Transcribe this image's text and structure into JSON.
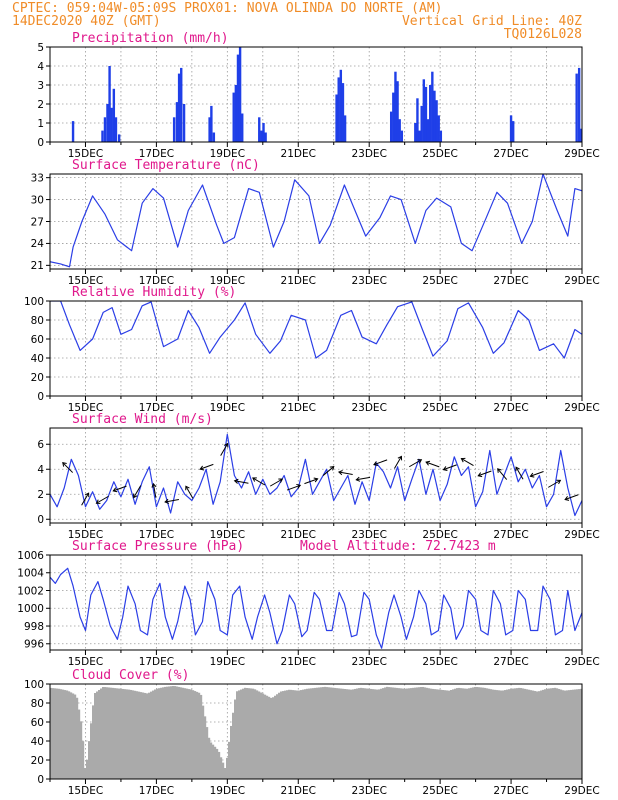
{
  "header": {
    "line1": "CPTEC:   059:04W-05:09S   PROX01: NOVA OLINDA DO NORTE (AM)",
    "line2_left": "14DEC2020 40Z (GMT)",
    "line2_right": "Vertical Grid Line: 40Z",
    "line3_right": "TQ0126L028"
  },
  "x_axis": {
    "labels": [
      "15DEC",
      "17DEC",
      "19DEC",
      "21DEC",
      "23DEC",
      "25DEC",
      "27DEC",
      "29DEC"
    ],
    "label_days": [
      1,
      3,
      5,
      7,
      9,
      11,
      13,
      15
    ],
    "range_days": [
      0,
      15
    ]
  },
  "colors": {
    "series": "#2b3ee6",
    "bars": "#1f3fe8",
    "cloud": "#aaaaaa",
    "grid": "#9a9a9a",
    "title": "#e0188c",
    "header": "#f08c28"
  },
  "chart_data": [
    {
      "id": "precip",
      "type": "bar",
      "title": "Precipitation (mm/h)",
      "ylim": [
        0,
        5
      ],
      "yticks": [
        0,
        1,
        2,
        3,
        4,
        5
      ],
      "grid": true,
      "x": [
        0.65,
        1.48,
        1.55,
        1.62,
        1.68,
        1.74,
        1.8,
        1.86,
        1.95,
        3.5,
        3.58,
        3.64,
        3.7,
        3.78,
        4.5,
        4.55,
        4.62,
        5.18,
        5.24,
        5.3,
        5.36,
        5.42,
        5.9,
        5.96,
        6.02,
        6.08,
        8.08,
        8.14,
        8.2,
        8.26,
        8.32,
        9.62,
        9.68,
        9.74,
        9.8,
        9.86,
        9.92,
        10.3,
        10.36,
        10.42,
        10.48,
        10.54,
        10.6,
        10.66,
        10.72,
        10.78,
        10.84,
        10.9,
        10.96,
        11.02,
        13.0,
        13.06,
        14.85,
        14.92,
        14.98
      ],
      "values": [
        1.1,
        0.6,
        1.3,
        2.0,
        4.0,
        1.8,
        2.8,
        1.3,
        0.4,
        1.3,
        2.1,
        3.6,
        3.9,
        2.0,
        1.3,
        1.9,
        0.5,
        2.6,
        3.0,
        4.6,
        5.0,
        1.5,
        1.3,
        0.6,
        1.0,
        0.5,
        2.5,
        3.4,
        3.8,
        3.1,
        1.4,
        1.6,
        2.6,
        3.7,
        3.2,
        1.2,
        0.6,
        1.0,
        2.3,
        0.6,
        1.9,
        3.3,
        2.9,
        1.2,
        3.0,
        3.7,
        2.7,
        2.2,
        1.4,
        0.6,
        1.4,
        1.1,
        3.6,
        3.9,
        0.7
      ]
    },
    {
      "id": "temp",
      "type": "line",
      "title": "Surface Temperature (nC)",
      "ylim": [
        20.5,
        33.5
      ],
      "yticks": [
        21,
        24,
        27,
        30,
        33
      ],
      "grid": true,
      "x": [
        0,
        0.3,
        0.55,
        0.65,
        0.9,
        1.2,
        1.55,
        1.9,
        2.3,
        2.6,
        2.9,
        3.2,
        3.6,
        3.9,
        4.3,
        4.7,
        4.9,
        5.2,
        5.6,
        5.9,
        6.3,
        6.6,
        6.9,
        7.3,
        7.6,
        7.9,
        8.3,
        8.6,
        8.9,
        9.3,
        9.6,
        9.9,
        10.3,
        10.6,
        10.9,
        11.3,
        11.6,
        11.9,
        12.3,
        12.6,
        12.9,
        13.3,
        13.6,
        13.9,
        14.3,
        14.6,
        14.8,
        15
      ],
      "values": [
        21.5,
        21.2,
        20.8,
        23.5,
        27.0,
        30.5,
        28.0,
        24.5,
        23.0,
        29.5,
        31.5,
        30.2,
        23.5,
        28.5,
        32.0,
        26.5,
        24.0,
        24.8,
        31.5,
        31.0,
        23.5,
        27.0,
        32.7,
        30.5,
        24.0,
        26.5,
        32.0,
        28.5,
        25.0,
        27.5,
        30.5,
        30.0,
        24.0,
        28.5,
        30.2,
        29.0,
        24.0,
        23.0,
        27.5,
        31.0,
        29.5,
        24.0,
        27.0,
        33.5,
        28.5,
        25.0,
        31.5,
        31.2
      ]
    },
    {
      "id": "rh",
      "type": "line",
      "title": "Relative Humidity (%)",
      "ylim": [
        0,
        100
      ],
      "yticks": [
        0,
        20,
        40,
        60,
        80,
        100
      ],
      "grid": true,
      "x": [
        0,
        0.3,
        0.55,
        0.85,
        1.2,
        1.5,
        1.75,
        2.0,
        2.3,
        2.6,
        2.85,
        3.2,
        3.6,
        3.9,
        4.2,
        4.5,
        4.8,
        5.2,
        5.5,
        5.8,
        6.2,
        6.5,
        6.8,
        7.2,
        7.5,
        7.8,
        8.2,
        8.5,
        8.8,
        9.2,
        9.5,
        9.8,
        10.2,
        10.5,
        10.8,
        11.2,
        11.5,
        11.8,
        12.2,
        12.5,
        12.8,
        13.2,
        13.5,
        13.8,
        14.2,
        14.5,
        14.8,
        15
      ],
      "values": [
        100,
        100,
        75,
        48,
        60,
        88,
        93,
        65,
        70,
        95,
        99,
        52,
        60,
        90,
        72,
        45,
        62,
        80,
        98,
        65,
        45,
        58,
        85,
        80,
        40,
        48,
        85,
        90,
        62,
        55,
        75,
        94,
        99,
        70,
        42,
        58,
        92,
        98,
        72,
        45,
        56,
        90,
        80,
        48,
        55,
        40,
        70,
        65
      ]
    },
    {
      "id": "wind",
      "type": "line",
      "title": "Surface Wind (m/s)",
      "ylim": [
        -0.3,
        7.3
      ],
      "yticks": [
        0,
        2,
        4,
        6
      ],
      "grid": true,
      "x": [
        0,
        0.2,
        0.4,
        0.6,
        0.8,
        1.0,
        1.2,
        1.4,
        1.6,
        1.8,
        2.0,
        2.2,
        2.4,
        2.6,
        2.8,
        3.0,
        3.2,
        3.4,
        3.6,
        3.8,
        4.0,
        4.2,
        4.4,
        4.6,
        4.8,
        5.0,
        5.2,
        5.4,
        5.6,
        5.8,
        6.0,
        6.2,
        6.4,
        6.6,
        6.8,
        7.0,
        7.2,
        7.4,
        7.6,
        7.8,
        8.0,
        8.2,
        8.4,
        8.6,
        8.8,
        9.0,
        9.2,
        9.4,
        9.6,
        9.8,
        10.0,
        10.2,
        10.4,
        10.6,
        10.8,
        11.0,
        11.2,
        11.4,
        11.6,
        11.8,
        12.0,
        12.2,
        12.4,
        12.6,
        12.8,
        13.0,
        13.2,
        13.4,
        13.6,
        13.8,
        14.0,
        14.2,
        14.4,
        14.6,
        14.8,
        15.0
      ],
      "values": [
        2.0,
        1.0,
        2.5,
        4.8,
        3.5,
        1.0,
        2.2,
        0.8,
        1.5,
        3.0,
        1.8,
        3.2,
        1.2,
        3.0,
        4.2,
        1.0,
        2.5,
        0.5,
        3.0,
        2.0,
        1.5,
        2.5,
        4.0,
        1.2,
        3.0,
        6.8,
        3.5,
        2.5,
        3.8,
        2.0,
        3.2,
        2.0,
        2.5,
        3.5,
        1.8,
        2.5,
        4.8,
        2.0,
        3.0,
        4.0,
        1.5,
        2.5,
        3.5,
        1.2,
        3.0,
        1.5,
        4.5,
        3.8,
        2.5,
        4.2,
        1.5,
        3.2,
        4.8,
        2.0,
        4.0,
        1.5,
        2.8,
        5.0,
        3.5,
        4.2,
        1.0,
        2.2,
        5.5,
        2.0,
        3.5,
        5.0,
        3.0,
        4.0,
        2.5,
        3.5,
        1.0,
        2.0,
        5.5,
        2.5,
        0.3,
        1.5
      ]
    },
    {
      "id": "press",
      "type": "line",
      "title": "Surface Pressure (hPa)",
      "annotation": "Model Altitude: 72.7423 m",
      "ylim": [
        995.3,
        1006
      ],
      "yticks": [
        996,
        998,
        1000,
        1002,
        1004,
        1006
      ],
      "grid": true,
      "x": [
        0,
        0.15,
        0.3,
        0.5,
        0.65,
        0.85,
        1.0,
        1.15,
        1.35,
        1.5,
        1.7,
        1.9,
        2.05,
        2.2,
        2.4,
        2.55,
        2.75,
        2.9,
        3.1,
        3.25,
        3.45,
        3.6,
        3.8,
        3.95,
        4.1,
        4.3,
        4.45,
        4.65,
        4.8,
        5.0,
        5.15,
        5.35,
        5.5,
        5.7,
        5.85,
        6.05,
        6.2,
        6.4,
        6.55,
        6.75,
        6.9,
        7.1,
        7.25,
        7.45,
        7.6,
        7.8,
        7.95,
        8.15,
        8.3,
        8.5,
        8.65,
        8.85,
        9.0,
        9.2,
        9.35,
        9.55,
        9.7,
        9.9,
        10.05,
        10.25,
        10.4,
        10.6,
        10.75,
        10.95,
        11.1,
        11.3,
        11.45,
        11.65,
        11.8,
        12.0,
        12.15,
        12.35,
        12.5,
        12.7,
        12.85,
        13.05,
        13.2,
        13.4,
        13.55,
        13.75,
        13.9,
        14.1,
        14.25,
        14.45,
        14.6,
        14.8,
        15.0
      ],
      "values": [
        1003.5,
        1002.8,
        1003.8,
        1004.5,
        1002.5,
        999.0,
        997.5,
        1001.5,
        1003.0,
        1001.0,
        998.0,
        996.5,
        999.0,
        1002.5,
        1000.5,
        997.5,
        997.0,
        1001.0,
        1002.8,
        999.0,
        996.5,
        998.5,
        1002.5,
        1001.0,
        997.0,
        998.5,
        1003.0,
        1001.0,
        997.5,
        997.0,
        1001.5,
        1002.5,
        999.0,
        996.5,
        999.0,
        1001.5,
        999.5,
        996.0,
        997.5,
        1001.5,
        1000.5,
        996.8,
        997.5,
        1001.8,
        1001.0,
        997.5,
        997.5,
        1001.8,
        1000.5,
        996.8,
        997.0,
        1001.8,
        1001.0,
        997.0,
        995.5,
        999.5,
        1001.5,
        999.0,
        996.5,
        999.0,
        1002.0,
        1000.5,
        997.0,
        997.5,
        1001.5,
        1000.0,
        996.5,
        998.0,
        1002.0,
        1001.0,
        997.5,
        997.0,
        1002.0,
        1000.5,
        997.0,
        997.5,
        1002.0,
        1001.0,
        997.5,
        997.5,
        1002.5,
        1001.0,
        997.0,
        997.5,
        1002.0,
        997.5,
        999.5
      ]
    },
    {
      "id": "cloud",
      "type": "area",
      "title": "Cloud Cover (%)",
      "ylim": [
        0,
        100
      ],
      "yticks": [
        0,
        20,
        40,
        60,
        80,
        100
      ],
      "grid": true,
      "x": [
        0,
        0.25,
        0.5,
        0.75,
        0.9,
        1.0,
        1.1,
        1.25,
        1.5,
        1.75,
        2.0,
        2.25,
        2.5,
        2.75,
        3.0,
        3.25,
        3.5,
        3.75,
        4.0,
        4.25,
        4.5,
        4.75,
        4.95,
        5.1,
        5.25,
        5.5,
        5.75,
        6.0,
        6.25,
        6.5,
        6.75,
        7.0,
        7.25,
        7.5,
        7.75,
        8.0,
        8.25,
        8.5,
        8.75,
        9.0,
        9.25,
        9.5,
        9.75,
        10.0,
        10.25,
        10.5,
        10.75,
        11.0,
        11.25,
        11.5,
        11.75,
        12.0,
        12.25,
        12.5,
        12.75,
        13.0,
        13.25,
        13.5,
        13.75,
        14.0,
        14.25,
        14.5,
        14.75,
        15.0
      ],
      "values": [
        96,
        95,
        93,
        88,
        55,
        5,
        40,
        90,
        97,
        96,
        95,
        94,
        92,
        90,
        95,
        97,
        98,
        96,
        94,
        90,
        40,
        30,
        10,
        55,
        92,
        96,
        95,
        90,
        85,
        92,
        94,
        93,
        95,
        96,
        97,
        96,
        95,
        94,
        96,
        95,
        94,
        97,
        96,
        95,
        96,
        97,
        95,
        94,
        93,
        96,
        95,
        97,
        96,
        94,
        93,
        95,
        96,
        94,
        92,
        95,
        96,
        93,
        94,
        95
      ]
    }
  ]
}
